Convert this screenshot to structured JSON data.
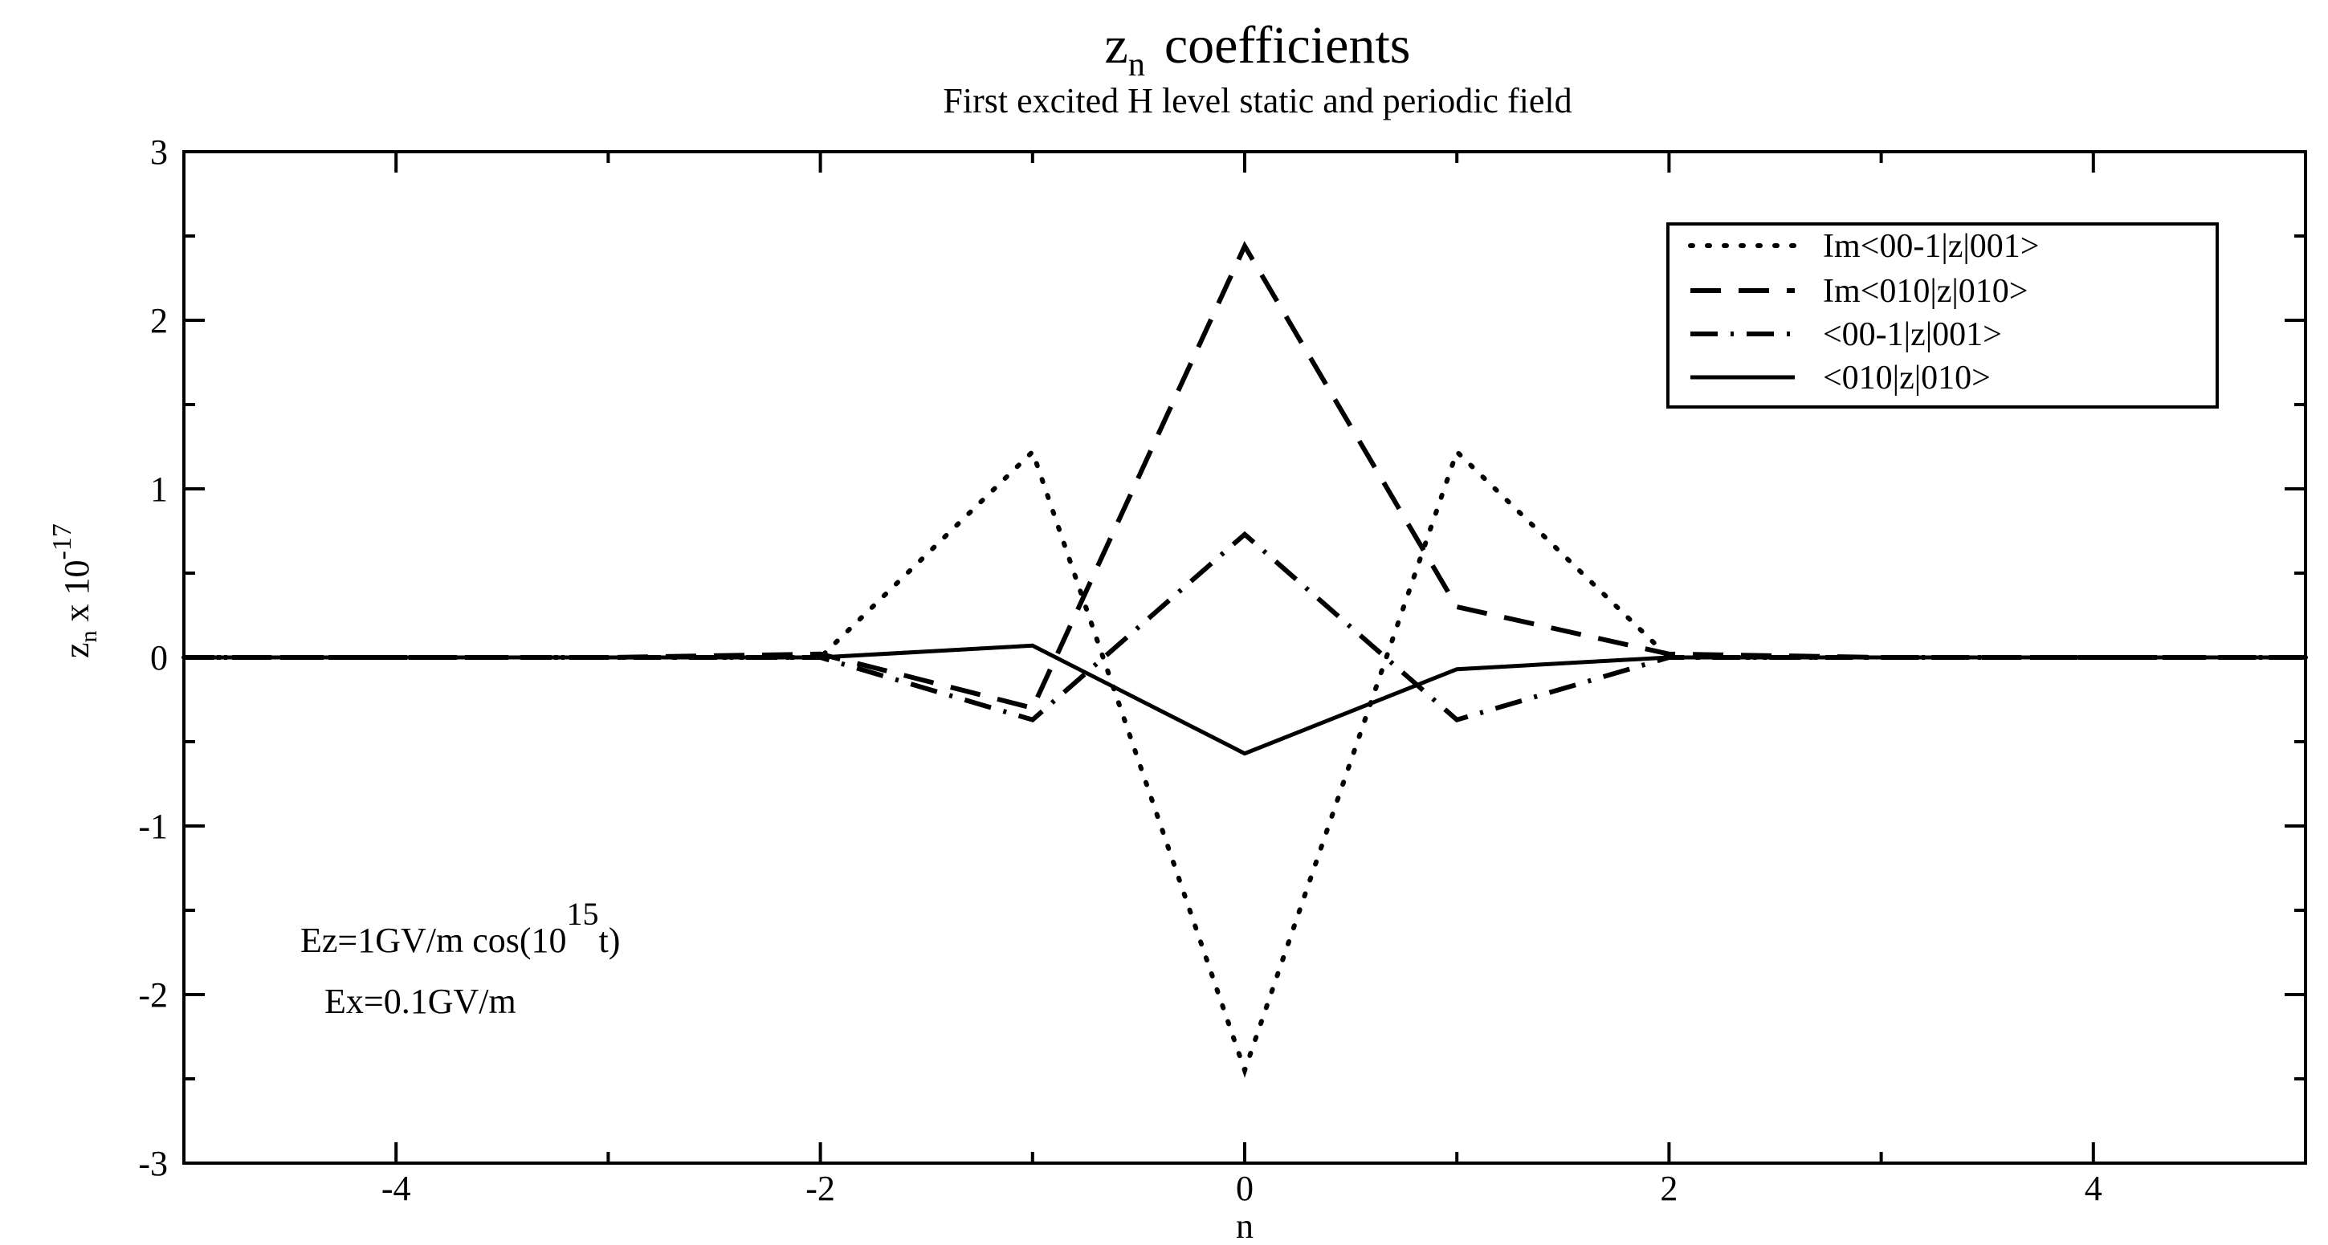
{
  "chart_data": {
    "type": "line",
    "title": {
      "base": "z",
      "sub": "n",
      "rest": "coefficients"
    },
    "subtitle": "First excited H level static and periodic field",
    "xlabel": "n",
    "ylabel": {
      "base": "z",
      "sub": "n",
      "rest": " x 10",
      "sup": "-17"
    },
    "xlim": [
      -5,
      5
    ],
    "ylim": [
      -3,
      3
    ],
    "x_ticks": [
      -4,
      -2,
      0,
      2,
      4
    ],
    "y_ticks": [
      -3,
      -2,
      -1,
      0,
      1,
      2,
      3
    ],
    "grid": false,
    "legend_position": "top-right",
    "series": [
      {
        "name": "Im<00-1|z|001>",
        "dash": "dotted",
        "x": [
          -5,
          -4,
          -3,
          -2,
          -1,
          0,
          1,
          2,
          3,
          4,
          5
        ],
        "y": [
          0,
          0,
          0,
          0,
          1.22,
          -2.45,
          1.22,
          0,
          0,
          0,
          0
        ]
      },
      {
        "name": "Im<010|z|010>",
        "dash": "dashed",
        "x": [
          -5,
          -4,
          -3,
          -2,
          -1,
          0,
          1,
          2,
          3,
          4,
          5
        ],
        "y": [
          0,
          0,
          0,
          0.02,
          -0.3,
          2.44,
          0.3,
          0.02,
          0,
          0,
          0
        ]
      },
      {
        "name": "<00-1|z|001>",
        "dash": "dashdot",
        "x": [
          -5,
          -4,
          -3,
          -2,
          -1,
          0,
          1,
          2,
          3,
          4,
          5
        ],
        "y": [
          0,
          0,
          0,
          0,
          -0.37,
          0.73,
          -0.37,
          0,
          0,
          0,
          0
        ]
      },
      {
        "name": "<010|z|010>",
        "dash": "solid",
        "x": [
          -5,
          -4,
          -3,
          -2,
          -1,
          0,
          1,
          2,
          3,
          4,
          5
        ],
        "y": [
          0,
          0,
          0,
          0,
          0.07,
          -0.57,
          -0.07,
          0,
          0,
          0,
          0
        ]
      }
    ],
    "annotations": [
      {
        "pre": "Ez=1GV/m cos(10",
        "sup": "15",
        "post": "t)"
      },
      {
        "text": "Ex=0.1GV/m"
      }
    ]
  }
}
